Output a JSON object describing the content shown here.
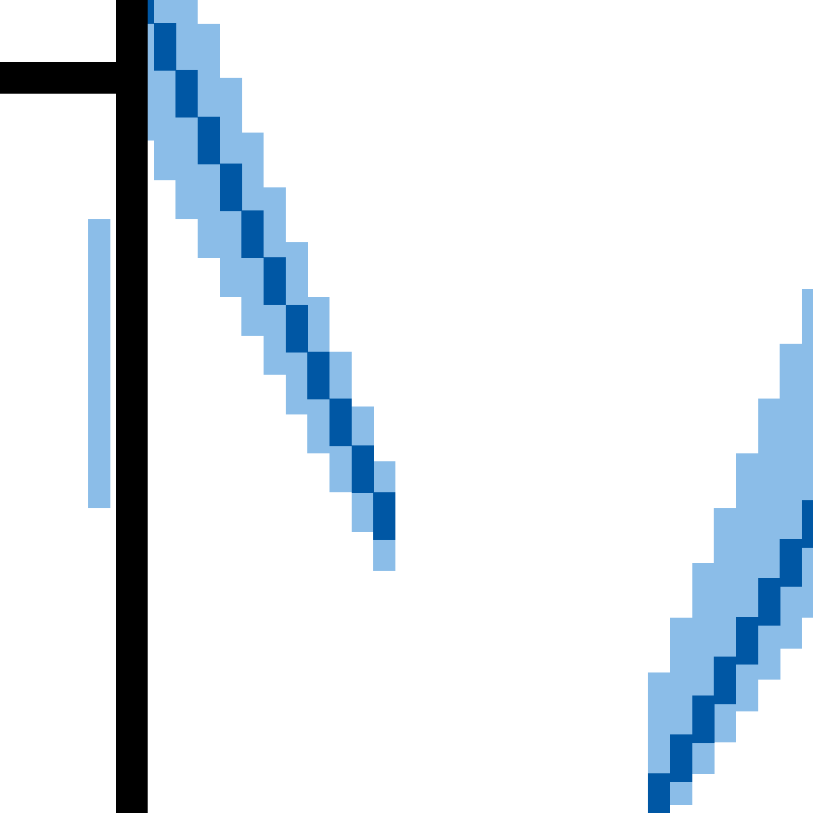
{
  "chart_data": {
    "type": "line",
    "title": "",
    "xlabel": "",
    "ylabel": "",
    "grid": false,
    "legend": "none",
    "band_color": "#8bbde8",
    "line_color": "#0057a4",
    "axis_color": "#000000",
    "series": [
      {
        "segment": "left",
        "x": [
          0.0,
          0.1,
          0.2,
          0.3,
          0.4,
          0.5,
          0.6,
          0.7,
          0.8,
          0.9,
          1.0,
          1.1
        ],
        "values": [
          3.4,
          3.1,
          2.8,
          2.5,
          2.2,
          1.9,
          1.6,
          1.3,
          1.0,
          0.7,
          0.4,
          0.1
        ],
        "lower": [
          2.5,
          2.25,
          2.0,
          1.75,
          1.5,
          1.25,
          1.0,
          0.75,
          0.5,
          0.25,
          0.0,
          -0.25
        ],
        "upper": [
          4.3,
          3.95,
          3.6,
          3.25,
          2.9,
          2.55,
          2.2,
          1.85,
          1.5,
          1.15,
          0.8,
          0.45
        ]
      },
      {
        "segment": "right",
        "x": [
          2.35,
          2.45,
          2.55,
          2.65,
          2.75,
          2.85,
          2.95,
          3.05
        ],
        "values": [
          -1.7,
          -1.45,
          -1.2,
          -0.95,
          -0.7,
          -0.45,
          -0.2,
          0.05
        ],
        "lower": [
          -1.95,
          -1.75,
          -1.55,
          -1.35,
          -1.15,
          -0.95,
          -0.75,
          -0.55
        ],
        "upper": [
          -0.9,
          -0.55,
          -0.2,
          0.15,
          0.5,
          0.85,
          1.2,
          1.55
        ]
      }
    ],
    "xlim": [
      -0.6,
      3.1
    ],
    "ylim": [
      -1.8,
      3.4
    ],
    "ticks": [
      {
        "axis": "y",
        "value": 2.9
      }
    ],
    "extra_band": {
      "x": [
        -0.2,
        -0.1
      ],
      "y": [
        0.15,
        2.0
      ]
    }
  }
}
